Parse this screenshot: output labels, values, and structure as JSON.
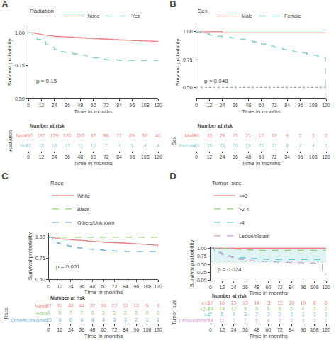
{
  "chart_data": [
    {
      "type": "step",
      "title": "A",
      "legend_title": "Radiation",
      "legend": "top",
      "grid": false,
      "x_label": "Time in months",
      "y_label": "Survival probability",
      "annotations": [
        "p = 0.15"
      ],
      "xlim": [
        0,
        120
      ],
      "xticks": [
        0,
        12,
        24,
        36,
        48,
        60,
        72,
        84,
        96,
        108,
        120
      ],
      "ylim": [
        0.5,
        1.05
      ],
      "yticks": [
        {
          "value": 0.5,
          "label": "0.50"
        },
        0.75,
        {
          "value": 1.0,
          "label": "1.00"
        }
      ],
      "series": [
        {
          "name": "None",
          "color": "#f08080",
          "line_style": "solid",
          "x": [
            0,
            6,
            9,
            12,
            14,
            18,
            22,
            24,
            30,
            36,
            42,
            48,
            54,
            60,
            66,
            72,
            78,
            84,
            90,
            96,
            102,
            108,
            114,
            120
          ],
          "values": [
            1.0,
            0.995,
            0.99,
            0.985,
            0.982,
            0.978,
            0.975,
            0.972,
            0.97,
            0.967,
            0.964,
            0.961,
            0.958,
            0.955,
            0.953,
            0.951,
            0.948,
            0.945,
            0.943,
            0.941,
            0.939,
            0.937,
            0.935,
            0.933
          ]
        },
        {
          "name": "Yes",
          "color": "#7ececa",
          "line_style": "dashed",
          "x": [
            0,
            4,
            8,
            12,
            16,
            20,
            22,
            24,
            26,
            30,
            34,
            38,
            42,
            48,
            54,
            60,
            66,
            72,
            84,
            96,
            120
          ],
          "values": [
            1.0,
            0.97,
            0.95,
            0.93,
            0.91,
            0.9,
            0.89,
            0.875,
            0.86,
            0.855,
            0.85,
            0.845,
            0.84,
            0.83,
            0.82,
            0.81,
            0.8,
            0.795,
            0.79,
            0.79,
            0.79
          ]
        }
      ],
      "risk_table": {
        "title": "Number at risk",
        "y_label": "Radiation",
        "x_label": "Time in months",
        "xlim": [
          0,
          120
        ],
        "xticks": [
          0,
          12,
          24,
          36,
          48,
          60,
          72,
          84,
          96,
          108,
          120
        ],
        "rows": [
          {
            "name": "None",
            "color": "#f08080",
            "values": [
              150,
              137,
              129,
              120,
              110,
              97,
              88,
              77,
              69,
              50,
              40
            ]
          },
          {
            "name": "Yes",
            "color": "#7ececa",
            "values": [
              22,
              18,
              16,
              13,
              11,
              10,
              7,
              7,
              6,
              4,
              4
            ]
          }
        ]
      }
    },
    {
      "type": "step",
      "title": "B",
      "legend_title": "Sex",
      "legend": "top",
      "grid": false,
      "x_label": "Time in months",
      "y_label": "Survival probability",
      "annotations": [
        "p = 0.048"
      ],
      "xlim": [
        0,
        120
      ],
      "xticks": [
        0,
        12,
        24,
        36,
        48,
        60,
        72,
        84,
        96,
        108,
        120
      ],
      "ylim": [
        0.4,
        1.05
      ],
      "yticks": [
        {
          "value": 0.5,
          "label": "0.50"
        },
        0.75,
        {
          "value": 1.0,
          "label": "1.00"
        }
      ],
      "hline": {
        "value": 0.5,
        "color": "gray",
        "line_style": "dotted"
      },
      "series": [
        {
          "name": "Male",
          "color": "#f08080",
          "line_style": "solid",
          "x": [
            0,
            6,
            12,
            18,
            24,
            30,
            36,
            42,
            48,
            54,
            60,
            66,
            72,
            78,
            84,
            90,
            96,
            102,
            108,
            120
          ],
          "values": [
            1.0,
            1.0,
            1.0,
            1.0,
            0.99,
            0.99,
            0.99,
            0.99,
            0.99,
            0.99,
            0.99,
            0.99,
            0.99,
            0.99,
            0.99,
            0.99,
            0.99,
            0.99,
            0.99,
            0.99
          ]
        },
        {
          "name": "Female",
          "color": "#7ececa",
          "line_style": "dashed",
          "x": [
            0,
            4,
            8,
            12,
            16,
            20,
            24,
            28,
            32,
            36,
            40,
            44,
            48,
            52,
            56,
            60,
            64,
            68,
            72,
            76,
            80,
            84,
            90,
            96,
            102,
            108,
            112,
            116,
            120
          ],
          "values": [
            1.0,
            0.99,
            0.98,
            0.97,
            0.965,
            0.96,
            0.955,
            0.95,
            0.945,
            0.94,
            0.935,
            0.93,
            0.92,
            0.91,
            0.9,
            0.89,
            0.88,
            0.87,
            0.86,
            0.85,
            0.84,
            0.83,
            0.82,
            0.81,
            0.8,
            0.79,
            0.78,
            0.77,
            0.43
          ]
        }
      ],
      "risk_table": {
        "title": "Number at risk",
        "y_label": "Sex",
        "x_label": "Time in months",
        "xlim": [
          0,
          120
        ],
        "xticks": [
          0,
          12,
          24,
          36,
          48,
          60,
          72,
          84,
          96,
          108,
          120
        ],
        "rows": [
          {
            "name": "Male",
            "color": "#f08080",
            "values": [
              36,
              33,
              28,
              25,
              21,
              17,
              13,
              9,
              7,
              3,
              2
            ]
          },
          {
            "name": "Female",
            "color": "#7ececa",
            "values": [
              40,
              35,
              33,
              30,
              26,
              22,
              17,
              8,
              7,
              4,
              1
            ]
          }
        ]
      }
    },
    {
      "type": "step",
      "title": "C",
      "legend_title": "Race",
      "legend": "top",
      "grid": false,
      "x_label": "Time in months",
      "y_label": "Survival probability",
      "annotations": [
        "p = 0.051"
      ],
      "xlim": [
        0,
        120
      ],
      "xticks": [
        0,
        12,
        24,
        36,
        48,
        60,
        72,
        84,
        96,
        108,
        120
      ],
      "ylim": [
        0.5,
        1.05
      ],
      "yticks": [
        {
          "value": 0.5,
          "label": "0.50"
        },
        0.75,
        {
          "value": 1.0,
          "label": "1.00"
        }
      ],
      "series": [
        {
          "name": "White",
          "color": "#f08080",
          "line_style": "solid",
          "x": [
            0,
            6,
            12,
            18,
            24,
            30,
            36,
            42,
            48,
            54,
            60,
            66,
            72,
            78,
            84,
            90,
            96,
            102,
            108,
            114,
            120
          ],
          "values": [
            1.0,
            0.99,
            0.98,
            0.975,
            0.97,
            0.965,
            0.96,
            0.955,
            0.95,
            0.945,
            0.94,
            0.938,
            0.936,
            0.932,
            0.928,
            0.924,
            0.92,
            0.916,
            0.912,
            0.908,
            0.885
          ]
        },
        {
          "name": "Black",
          "color": "#90cc70",
          "line_style": "dashed",
          "x": [
            0,
            6,
            12,
            18,
            24,
            36,
            48,
            60,
            72,
            84,
            96,
            108,
            120
          ],
          "values": [
            1.0,
            1.0,
            1.0,
            1.0,
            1.0,
            1.0,
            1.0,
            1.0,
            1.0,
            1.0,
            1.0,
            1.0,
            1.0
          ]
        },
        {
          "name": "Others/Unknown",
          "color": "#6baed6",
          "line_style": "dashed",
          "x": [
            0,
            4,
            8,
            10,
            12,
            14,
            20,
            24,
            28,
            32,
            36,
            42,
            48,
            54,
            60,
            66,
            72,
            84,
            96,
            108,
            120
          ],
          "values": [
            1.0,
            0.96,
            0.94,
            0.93,
            0.92,
            0.91,
            0.9,
            0.89,
            0.88,
            0.875,
            0.865,
            0.86,
            0.855,
            0.85,
            0.845,
            0.84,
            0.835,
            0.83,
            0.83,
            0.83,
            0.83
          ]
        }
      ],
      "risk_table": {
        "title": "Number at risk",
        "y_label": "Race",
        "x_label": "Time in months",
        "xlim": [
          0,
          120
        ],
        "xticks": [
          0,
          12,
          24,
          36,
          48,
          60,
          72,
          84,
          96,
          108,
          120
        ],
        "rows": [
          {
            "name": "White",
            "color": "#f08080",
            "values": [
              57,
              52,
              48,
              44,
              37,
              30,
              22,
              12,
              10,
              6,
              3
            ]
          },
          {
            "name": "Black",
            "color": "#90cc70",
            "values": [
              9,
              8,
              7,
              7,
              6,
              5,
              5,
              2,
              2,
              0,
              0
            ]
          },
          {
            "name": "Others/Unknown",
            "color": "#6baed6",
            "values": [
              10,
              8,
              6,
              4,
              4,
              4,
              3,
              3,
              2,
              1,
              1
            ]
          }
        ]
      }
    },
    {
      "type": "step",
      "title": "D",
      "legend_title": "Tumor_size",
      "legend": "top",
      "grid": false,
      "x_label": "Time in months",
      "y_label": "Survival probability",
      "annotations": [
        "p = 0.024"
      ],
      "xlim": [
        0,
        120
      ],
      "xticks": [
        0,
        12,
        24,
        36,
        48,
        60,
        72,
        84,
        96,
        108,
        120
      ],
      "ylim": [
        0.0,
        1.05
      ],
      "yticks": [
        {
          "value": 0.0,
          "label": "0.00"
        },
        0.25,
        {
          "value": 0.5,
          "label": "0.50"
        },
        0.75,
        {
          "value": 1.0,
          "label": "1.00"
        }
      ],
      "hline": {
        "value": 0.6,
        "color": "gray",
        "line_style": "dotted"
      },
      "band": {
        "values": [
          0.55,
          1.02
        ],
        "color": "#7ececa"
      },
      "series": [
        {
          "name": "<=2",
          "color": "#f08080",
          "line_style": "solid",
          "x": [
            0,
            6,
            12,
            18,
            24,
            30,
            36,
            42,
            48,
            54,
            60,
            66,
            72,
            78,
            84,
            90,
            96,
            102,
            108,
            114,
            120
          ],
          "values": [
            1.0,
            1.0,
            1.0,
            1.0,
            1.0,
            1.0,
            1.0,
            1.0,
            1.0,
            1.0,
            1.0,
            1.0,
            1.0,
            1.0,
            1.0,
            1.0,
            1.0,
            1.0,
            1.0,
            1.0,
            1.0
          ]
        },
        {
          "name": ">2-4",
          "color": "#90cc70",
          "line_style": "dashed",
          "x": [
            0,
            6,
            12,
            18,
            24,
            30,
            36,
            42,
            48,
            54,
            60,
            66,
            72,
            78,
            84,
            90,
            96,
            102,
            108,
            120
          ],
          "values": [
            1.0,
            1.0,
            0.99,
            0.98,
            0.97,
            0.96,
            0.95,
            0.94,
            0.93,
            0.93,
            0.93,
            0.93,
            0.93,
            0.93,
            0.93,
            0.93,
            0.93,
            0.93,
            0.93,
            0.93
          ]
        },
        {
          "name": ">4",
          "color": "#5bc8d8",
          "line_style": "dashed",
          "x": [
            0,
            4,
            8,
            10,
            12,
            16,
            18,
            20,
            22,
            24,
            28,
            30,
            36,
            42,
            48,
            54,
            60,
            66,
            72,
            78,
            84,
            90,
            96,
            108,
            120
          ],
          "values": [
            1.0,
            0.93,
            0.88,
            0.85,
            0.82,
            0.79,
            0.77,
            0.75,
            0.73,
            0.72,
            0.71,
            0.7,
            0.69,
            0.68,
            0.67,
            0.66,
            0.65,
            0.65,
            0.65,
            0.65,
            0.65,
            0.65,
            0.65,
            0.65,
            0.65
          ]
        },
        {
          "name": "Lesion/distant",
          "color": "#d4a0d4",
          "line_style": "dashed",
          "x": [
            0,
            4,
            8,
            12,
            14,
            18,
            22,
            24,
            28,
            30,
            36,
            42,
            48,
            54,
            60,
            66,
            72,
            84,
            96,
            108,
            112,
            116,
            120
          ],
          "values": [
            1.0,
            0.93,
            0.85,
            0.79,
            0.77,
            0.74,
            0.71,
            0.69,
            0.67,
            0.65,
            0.63,
            0.61,
            0.6,
            0.59,
            0.58,
            0.57,
            0.56,
            0.55,
            0.54,
            0.53,
            0.52,
            0.2,
            0.18
          ]
        }
      ],
      "risk_table": {
        "title": "Number at risk",
        "y_label": "Tumor_size",
        "x_label": "Time in months",
        "xlim": [
          0,
          120
        ],
        "xticks": [
          0,
          12,
          24,
          36,
          48,
          60,
          72,
          84,
          96,
          108,
          120
        ],
        "rows": [
          {
            "name": "<=2",
            "color": "#f08080",
            "values": [
              17,
              16,
              15,
              15,
              14,
              11,
              11,
              10,
              10,
              8,
              6
            ]
          },
          {
            "name": ">2-4",
            "color": "#90cc70",
            "values": [
              19,
              14,
              12,
              9,
              6,
              6,
              6,
              5,
              4,
              3,
              2
            ]
          },
          {
            "name": ">4",
            "color": "#5bc8d8",
            "values": [
              7,
              6,
              4,
              3,
              2,
              2,
              2,
              2,
              1,
              1,
              1
            ]
          },
          {
            "name": "Lesion/distant",
            "color": "#d4a0d4",
            "values": [
              14,
              11,
              7,
              7,
              6,
              4,
              3,
              3,
              3,
              3,
              1
            ]
          }
        ]
      }
    }
  ]
}
